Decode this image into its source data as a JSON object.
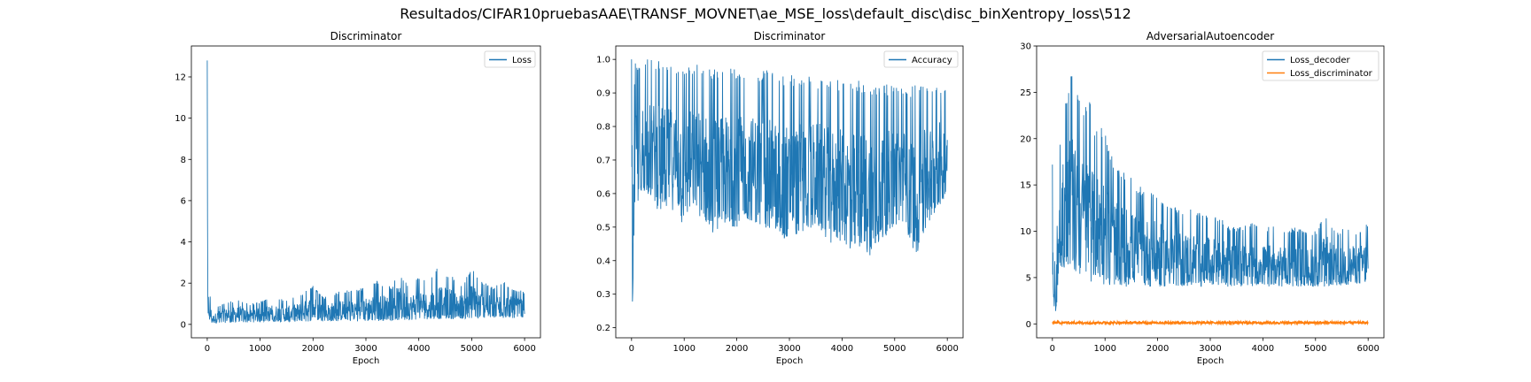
{
  "suptitle": "Resultados/CIFAR10pruebasAAE\\TRANSF_MOVNET\\ae_MSE_loss\\default_disc\\disc_binXentropy_loss\\512",
  "colors": {
    "blue": "#1f77b4",
    "orange": "#ff7f0e"
  },
  "chart_data": [
    {
      "type": "line",
      "title": "Discriminator",
      "xlabel": "Epoch",
      "ylabel": "",
      "xlim": [
        -300,
        6300
      ],
      "ylim": [
        -0.65,
        13.5
      ],
      "xticks": [
        0,
        1000,
        2000,
        3000,
        4000,
        5000,
        6000
      ],
      "yticks": [
        0,
        2,
        4,
        6,
        8,
        10,
        12
      ],
      "legend": "top-right",
      "series": [
        {
          "name": "Loss",
          "color": "#1f77b4",
          "envelope": {
            "x": [
              0,
              10,
              25,
              50,
              100,
              200,
              400,
              600,
              800,
              1000,
              1200,
              1500,
              1800,
              2000,
              2200,
              2500,
              2800,
              3000,
              3200,
              3500,
              3600,
              3800,
              4000,
              4200,
              4350,
              4400,
              4600,
              4800,
              5000,
              5200,
              5400,
              5600,
              5800,
              6000
            ],
            "upper": [
              12.8,
              2.3,
              2.0,
              1.5,
              0.6,
              0.9,
              1.1,
              1.2,
              1.0,
              1.1,
              1.3,
              1.2,
              1.5,
              1.9,
              1.3,
              1.6,
              1.7,
              1.8,
              2.1,
              1.8,
              2.6,
              1.9,
              2.3,
              2.0,
              2.9,
              2.5,
              2.4,
              1.9,
              2.7,
              2.1,
              1.8,
              2.1,
              1.7,
              1.6
            ],
            "lower": [
              1.3,
              0.5,
              0.3,
              0.1,
              0.05,
              0.05,
              0.08,
              0.1,
              0.1,
              0.1,
              0.12,
              0.12,
              0.13,
              0.15,
              0.15,
              0.15,
              0.15,
              0.15,
              0.15,
              0.2,
              0.2,
              0.2,
              0.2,
              0.25,
              0.25,
              0.25,
              0.25,
              0.25,
              0.25,
              0.3,
              0.3,
              0.3,
              0.3,
              0.35
            ]
          }
        }
      ]
    },
    {
      "type": "line",
      "title": "Discriminator",
      "xlabel": "Epoch",
      "ylabel": "",
      "xlim": [
        -300,
        6300
      ],
      "ylim": [
        0.17,
        1.04
      ],
      "xticks": [
        0,
        1000,
        2000,
        3000,
        4000,
        5000,
        6000
      ],
      "yticks": [
        0.2,
        0.3,
        0.4,
        0.5,
        0.6,
        0.7,
        0.8,
        0.9,
        1.0
      ],
      "legend": "top-right",
      "series": [
        {
          "name": "Accuracy",
          "color": "#1f77b4",
          "envelope": {
            "x": [
              0,
              20,
              40,
              60,
              80,
              100,
              200,
              300,
              500,
              800,
              1000,
              1200,
              1500,
              1800,
              2000,
              2200,
              2500,
              2800,
              3000,
              3200,
              3500,
              3800,
              4000,
              4200,
              4400,
              4500,
              4700,
              5000,
              5200,
              5400,
              5600,
              5800,
              6000
            ],
            "upper": [
              1.0,
              0.6,
              0.85,
              0.99,
              1.0,
              1.0,
              1.0,
              1.0,
              1.0,
              0.99,
              0.99,
              0.99,
              0.98,
              0.98,
              0.97,
              0.97,
              0.97,
              0.96,
              0.96,
              0.95,
              0.95,
              0.94,
              0.94,
              0.94,
              0.94,
              0.93,
              0.93,
              0.92,
              0.92,
              0.93,
              0.92,
              0.93,
              0.92
            ],
            "lower": [
              0.22,
              0.21,
              0.45,
              0.42,
              0.5,
              0.55,
              0.6,
              0.6,
              0.55,
              0.55,
              0.5,
              0.55,
              0.48,
              0.5,
              0.5,
              0.52,
              0.5,
              0.48,
              0.45,
              0.48,
              0.5,
              0.45,
              0.45,
              0.42,
              0.45,
              0.41,
              0.45,
              0.5,
              0.5,
              0.41,
              0.5,
              0.55,
              0.6
            ]
          }
        }
      ]
    },
    {
      "type": "line",
      "title": "AdversarialAutoencoder",
      "xlabel": "Epoch",
      "ylabel": "",
      "xlim": [
        -300,
        6300
      ],
      "ylim": [
        -1.5,
        30
      ],
      "xticks": [
        0,
        1000,
        2000,
        3000,
        4000,
        5000,
        6000
      ],
      "yticks": [
        0,
        5,
        10,
        15,
        20,
        25,
        30
      ],
      "legend": "top-right",
      "series": [
        {
          "name": "Loss_decoder",
          "color": "#1f77b4",
          "envelope": {
            "x": [
              0,
              30,
              60,
              100,
              150,
              200,
              300,
              350,
              400,
              500,
              600,
              700,
              800,
              900,
              1000,
              1200,
              1400,
              1600,
              1800,
              2000,
              2200,
              2400,
              2600,
              2800,
              3000,
              3200,
              3400,
              3600,
              3800,
              4000,
              4200,
              4400,
              4600,
              4800,
              5000,
              5200,
              5400,
              5600,
              5800,
              6000
            ],
            "upper": [
              17.2,
              6,
              8,
              12,
              20,
              24,
              25,
              28.6,
              25,
              24.8,
              23,
              24.5,
              21,
              22,
              20.5,
              17,
              16.5,
              15,
              14.5,
              14,
              13,
              12.5,
              12.5,
              12,
              11.5,
              11.5,
              10.5,
              10.5,
              11,
              10.5,
              10.5,
              10,
              10.5,
              10,
              10,
              12,
              10,
              10.5,
              10,
              11
            ],
            "lower": [
              5,
              2,
              1.2,
              2.5,
              5,
              6,
              6,
              6,
              5.5,
              5,
              4.8,
              4.5,
              4.5,
              4.5,
              4.2,
              4.0,
              4.0,
              4.0,
              4.0,
              4.0,
              4.0,
              4.0,
              4.0,
              4.0,
              4.0,
              4.0,
              4.0,
              4.0,
              4.0,
              4.0,
              4.0,
              4.0,
              4.0,
              4.0,
              4.0,
              4.0,
              4.0,
              4.2,
              4.3,
              4.5
            ]
          }
        },
        {
          "name": "Loss_discriminator",
          "color": "#ff7f0e",
          "envelope": {
            "x": [
              0,
              6000
            ],
            "upper": [
              0.25,
              0.25
            ],
            "lower": [
              0.0,
              0.0
            ]
          }
        }
      ]
    }
  ]
}
